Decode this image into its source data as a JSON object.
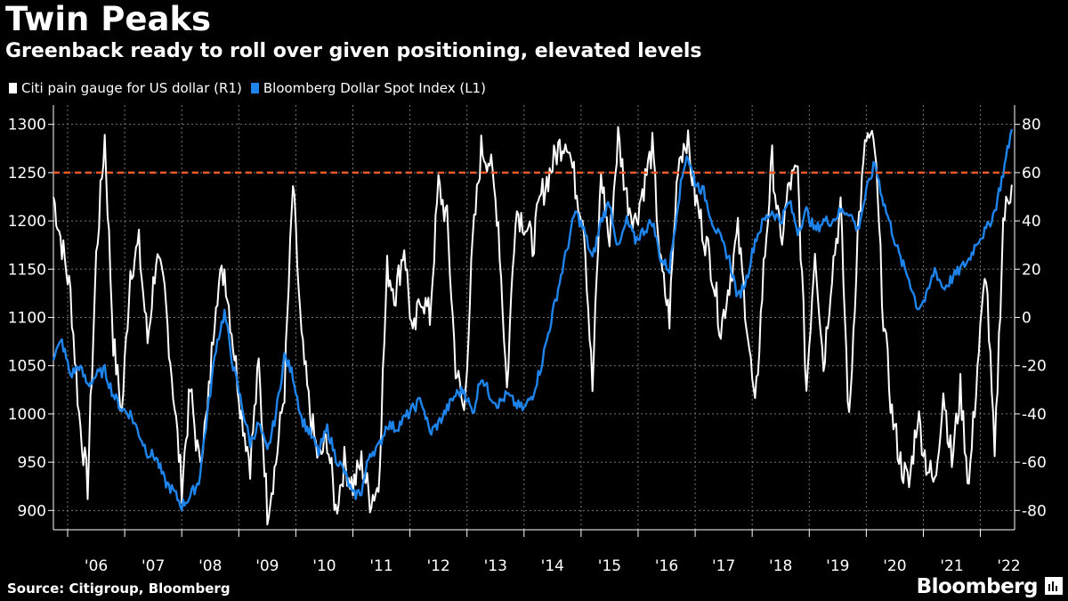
{
  "title": "Twin Peaks",
  "subtitle": "Greenback ready to roll over given positioning, elevated levels",
  "source": "Source: Citigroup, Bloomberg",
  "brand": "Bloomberg",
  "chart_data": {
    "type": "line",
    "title": "Twin Peaks",
    "subtitle": "Greenback ready to roll over given positioning, elevated levels",
    "x_start_year": 2005.75,
    "x_end_year": 2022.6,
    "x_tick_labels": [
      "'06",
      "'07",
      "'08",
      "'09",
      "'10",
      "'11",
      "'12",
      "'13",
      "'14",
      "'15",
      "'16",
      "'17",
      "'18",
      "'19",
      "'20",
      "'21",
      "'22"
    ],
    "left_axis": {
      "ylim": [
        880,
        1320
      ],
      "ticks": [
        900,
        950,
        1000,
        1050,
        1100,
        1150,
        1200,
        1250,
        1300
      ]
    },
    "right_axis": {
      "ylim": [
        -88,
        88
      ],
      "ticks": [
        -80,
        -60,
        -40,
        -20,
        0,
        20,
        40,
        60,
        80
      ]
    },
    "reference_line": {
      "axis": "right",
      "value": 60,
      "color": "#f15a22",
      "style": "dashed"
    },
    "series": [
      {
        "name": "Citi pain gauge for US dollar (R1)",
        "axis": "right",
        "color": "#ffffff",
        "x": [
          2005.75,
          2005.9,
          2006.05,
          2006.2,
          2006.35,
          2006.5,
          2006.65,
          2006.8,
          2006.95,
          2007.1,
          2007.25,
          2007.4,
          2007.55,
          2007.7,
          2007.85,
          2008.0,
          2008.15,
          2008.3,
          2008.45,
          2008.6,
          2008.75,
          2008.9,
          2009.05,
          2009.2,
          2009.35,
          2009.5,
          2009.65,
          2009.8,
          2009.95,
          2010.1,
          2010.25,
          2010.4,
          2010.55,
          2010.7,
          2010.85,
          2011.0,
          2011.15,
          2011.3,
          2011.45,
          2011.6,
          2011.75,
          2011.9,
          2012.05,
          2012.2,
          2012.35,
          2012.5,
          2012.65,
          2012.8,
          2012.95,
          2013.1,
          2013.25,
          2013.4,
          2013.55,
          2013.7,
          2013.85,
          2014.0,
          2014.15,
          2014.3,
          2014.45,
          2014.6,
          2014.75,
          2014.9,
          2015.05,
          2015.2,
          2015.35,
          2015.5,
          2015.65,
          2015.8,
          2015.95,
          2016.1,
          2016.25,
          2016.4,
          2016.55,
          2016.7,
          2016.85,
          2017.0,
          2017.15,
          2017.3,
          2017.45,
          2017.6,
          2017.75,
          2017.9,
          2018.05,
          2018.2,
          2018.35,
          2018.5,
          2018.65,
          2018.8,
          2018.95,
          2019.1,
          2019.25,
          2019.4,
          2019.55,
          2019.7,
          2019.85,
          2020.0,
          2020.15,
          2020.3,
          2020.45,
          2020.6,
          2020.75,
          2020.9,
          2021.05,
          2021.2,
          2021.35,
          2021.5,
          2021.65,
          2021.8,
          2021.95,
          2022.1,
          2022.25,
          2022.4,
          2022.55
        ],
        "values": [
          50,
          30,
          10,
          -40,
          -70,
          25,
          75,
          -10,
          -40,
          20,
          30,
          -10,
          25,
          10,
          -30,
          -70,
          -30,
          -60,
          -40,
          10,
          20,
          -10,
          -40,
          -60,
          -20,
          -80,
          -60,
          -30,
          55,
          -10,
          -40,
          -60,
          -50,
          -80,
          -60,
          -70,
          -60,
          -75,
          -70,
          20,
          10,
          30,
          -10,
          10,
          0,
          55,
          40,
          -20,
          -40,
          30,
          70,
          65,
          40,
          -30,
          45,
          40,
          30,
          50,
          60,
          70,
          75,
          55,
          40,
          -30,
          60,
          30,
          75,
          50,
          40,
          55,
          70,
          20,
          0,
          65,
          75,
          50,
          35,
          20,
          -5,
          15,
          35,
          0,
          -40,
          20,
          65,
          30,
          55,
          60,
          -30,
          30,
          -20,
          20,
          45,
          -45,
          35,
          75,
          70,
          0,
          -40,
          -60,
          -70,
          -40,
          -60,
          -70,
          -30,
          -60,
          -30,
          -70,
          -20,
          20,
          -60,
          40,
          55
        ]
      },
      {
        "name": "Bloomberg Dollar Spot Index (L1)",
        "axis": "left",
        "color": "#1e84eb",
        "x": [
          2005.75,
          2005.9,
          2006.05,
          2006.2,
          2006.35,
          2006.5,
          2006.65,
          2006.8,
          2006.95,
          2007.1,
          2007.25,
          2007.4,
          2007.55,
          2007.7,
          2007.85,
          2008.0,
          2008.15,
          2008.3,
          2008.45,
          2008.6,
          2008.75,
          2008.9,
          2009.05,
          2009.2,
          2009.35,
          2009.5,
          2009.65,
          2009.8,
          2009.95,
          2010.1,
          2010.25,
          2010.4,
          2010.55,
          2010.7,
          2010.85,
          2011.0,
          2011.15,
          2011.3,
          2011.45,
          2011.6,
          2011.75,
          2011.9,
          2012.05,
          2012.2,
          2012.35,
          2012.5,
          2012.65,
          2012.8,
          2012.95,
          2013.1,
          2013.25,
          2013.4,
          2013.55,
          2013.7,
          2013.85,
          2014.0,
          2014.15,
          2014.3,
          2014.45,
          2014.6,
          2014.75,
          2014.9,
          2015.05,
          2015.2,
          2015.35,
          2015.5,
          2015.65,
          2015.8,
          2015.95,
          2016.1,
          2016.25,
          2016.4,
          2016.55,
          2016.7,
          2016.85,
          2017.0,
          2017.15,
          2017.3,
          2017.45,
          2017.6,
          2017.75,
          2017.9,
          2018.05,
          2018.2,
          2018.35,
          2018.5,
          2018.65,
          2018.8,
          2018.95,
          2019.1,
          2019.25,
          2019.4,
          2019.55,
          2019.7,
          2019.85,
          2020.0,
          2020.15,
          2020.3,
          2020.45,
          2020.6,
          2020.75,
          2020.9,
          2021.05,
          2021.2,
          2021.35,
          2021.5,
          2021.65,
          2021.8,
          2021.95,
          2022.1,
          2022.25,
          2022.4,
          2022.55
        ],
        "values": [
          1060,
          1075,
          1040,
          1050,
          1030,
          1040,
          1045,
          1020,
          1005,
          1000,
          980,
          960,
          955,
          930,
          920,
          905,
          915,
          930,
          1000,
          1070,
          1105,
          1050,
          1010,
          970,
          990,
          960,
          1000,
          1060,
          1040,
          995,
          980,
          960,
          985,
          955,
          940,
          915,
          920,
          960,
          965,
          990,
          985,
          995,
          1005,
          1015,
          980,
          990,
          1005,
          1020,
          1025,
          1000,
          1040,
          1020,
          1010,
          1020,
          1010,
          1005,
          1020,
          1050,
          1090,
          1130,
          1170,
          1210,
          1190,
          1160,
          1200,
          1220,
          1170,
          1200,
          1180,
          1190,
          1200,
          1160,
          1150,
          1220,
          1270,
          1240,
          1230,
          1200,
          1180,
          1160,
          1120,
          1140,
          1180,
          1200,
          1210,
          1200,
          1220,
          1190,
          1210,
          1190,
          1200,
          1200,
          1210,
          1210,
          1190,
          1230,
          1260,
          1220,
          1190,
          1160,
          1140,
          1110,
          1120,
          1150,
          1130,
          1140,
          1150,
          1160,
          1180,
          1190,
          1210,
          1250,
          1295
        ]
      }
    ]
  }
}
